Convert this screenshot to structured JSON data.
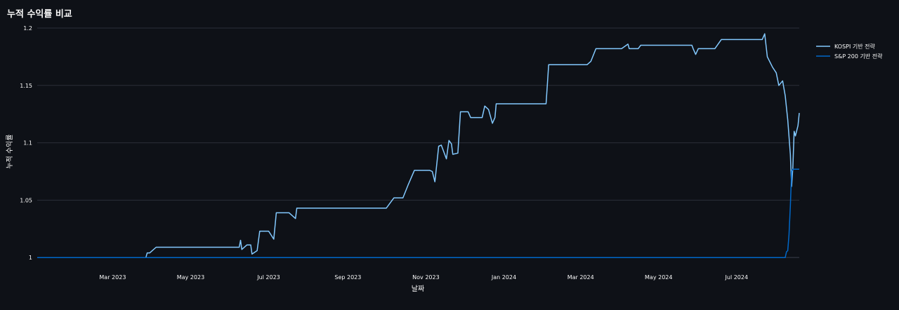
{
  "page": {
    "title": "누적 수익률 비교"
  },
  "chart_data": {
    "type": "line",
    "title": "누적 수익률 비교",
    "xlabel": "날짜",
    "ylabel": "누적 수익률",
    "grid": true,
    "legend_position": "right",
    "xlim": [
      "2023-01-01",
      "2024-08-19"
    ],
    "ylim": [
      0.994,
      1.2
    ],
    "x_ticks": [
      {
        "date": "2023-03-01",
        "label": "Mar 2023"
      },
      {
        "date": "2023-05-01",
        "label": "May 2023"
      },
      {
        "date": "2023-07-01",
        "label": "Jul 2023"
      },
      {
        "date": "2023-09-01",
        "label": "Sep 2023"
      },
      {
        "date": "2023-11-01",
        "label": "Nov 2023"
      },
      {
        "date": "2024-01-01",
        "label": "Jan 2024"
      },
      {
        "date": "2024-03-01",
        "label": "Mar 2024"
      },
      {
        "date": "2024-05-01",
        "label": "May 2024"
      },
      {
        "date": "2024-07-01",
        "label": "Jul 2024"
      }
    ],
    "y_ticks": [
      {
        "value": 1,
        "label": "1"
      },
      {
        "value": 1.05,
        "label": "1.05"
      },
      {
        "value": 1.1,
        "label": "1.1"
      },
      {
        "value": 1.15,
        "label": "1.15"
      },
      {
        "value": 1.2,
        "label": "1.2"
      }
    ],
    "series": [
      {
        "name": "KOSPI 기반 전략",
        "color": "#83c9ff",
        "points": [
          [
            "2023-01-01",
            1.0
          ],
          [
            "2023-03-27",
            1.0
          ],
          [
            "2023-03-28",
            1.004
          ],
          [
            "2023-03-30",
            1.004
          ],
          [
            "2023-04-04",
            1.009
          ],
          [
            "2023-06-08",
            1.009
          ],
          [
            "2023-06-09",
            1.015
          ],
          [
            "2023-06-10",
            1.007
          ],
          [
            "2023-06-14",
            1.011
          ],
          [
            "2023-06-17",
            1.011
          ],
          [
            "2023-06-18",
            1.003
          ],
          [
            "2023-06-22",
            1.006
          ],
          [
            "2023-06-24",
            1.023
          ],
          [
            "2023-07-01",
            1.023
          ],
          [
            "2023-07-05",
            1.016
          ],
          [
            "2023-07-07",
            1.039
          ],
          [
            "2023-07-17",
            1.039
          ],
          [
            "2023-07-22",
            1.034
          ],
          [
            "2023-07-23",
            1.043
          ],
          [
            "2023-10-01",
            1.043
          ],
          [
            "2023-10-07",
            1.052
          ],
          [
            "2023-10-14",
            1.052
          ],
          [
            "2023-10-18",
            1.063
          ],
          [
            "2023-10-23",
            1.076
          ],
          [
            "2023-11-04",
            1.076
          ],
          [
            "2023-11-06",
            1.075
          ],
          [
            "2023-11-08",
            1.066
          ],
          [
            "2023-11-11",
            1.097
          ],
          [
            "2023-11-13",
            1.098
          ],
          [
            "2023-11-17",
            1.086
          ],
          [
            "2023-11-19",
            1.102
          ],
          [
            "2023-11-21",
            1.099
          ],
          [
            "2023-11-22",
            1.09
          ],
          [
            "2023-11-26",
            1.091
          ],
          [
            "2023-11-28",
            1.127
          ],
          [
            "2023-12-04",
            1.127
          ],
          [
            "2023-12-06",
            1.122
          ],
          [
            "2023-12-15",
            1.122
          ],
          [
            "2023-12-17",
            1.132
          ],
          [
            "2023-12-20",
            1.129
          ],
          [
            "2023-12-23",
            1.117
          ],
          [
            "2023-12-25",
            1.122
          ],
          [
            "2023-12-26",
            1.134
          ],
          [
            "2024-02-03",
            1.134
          ],
          [
            "2024-02-05",
            1.168
          ],
          [
            "2024-03-06",
            1.168
          ],
          [
            "2024-03-09",
            1.171
          ],
          [
            "2024-03-13",
            1.182
          ],
          [
            "2024-04-02",
            1.182
          ],
          [
            "2024-04-07",
            1.186
          ],
          [
            "2024-04-08",
            1.182
          ],
          [
            "2024-04-15",
            1.182
          ],
          [
            "2024-04-17",
            1.185
          ],
          [
            "2024-05-27",
            1.185
          ],
          [
            "2024-05-28",
            1.182
          ],
          [
            "2024-05-30",
            1.177
          ],
          [
            "2024-06-01",
            1.182
          ],
          [
            "2024-06-14",
            1.182
          ],
          [
            "2024-06-19",
            1.19
          ],
          [
            "2024-07-21",
            1.19
          ],
          [
            "2024-07-23",
            1.195
          ],
          [
            "2024-07-25",
            1.175
          ],
          [
            "2024-07-29",
            1.166
          ],
          [
            "2024-08-01",
            1.161
          ],
          [
            "2024-08-03",
            1.15
          ],
          [
            "2024-08-06",
            1.154
          ],
          [
            "2024-08-08",
            1.141
          ],
          [
            "2024-08-10",
            1.12
          ],
          [
            "2024-08-12",
            1.09
          ],
          [
            "2024-08-13",
            1.062
          ],
          [
            "2024-08-14",
            1.079
          ],
          [
            "2024-08-15",
            1.11
          ],
          [
            "2024-08-16",
            1.106
          ],
          [
            "2024-08-18",
            1.115
          ],
          [
            "2024-08-19",
            1.126
          ]
        ]
      },
      {
        "name": "S&P 200 기반 전략",
        "color": "#0068c9",
        "points": [
          [
            "2023-01-01",
            1.0
          ],
          [
            "2024-08-08",
            1.0
          ],
          [
            "2024-08-09",
            1.005
          ],
          [
            "2024-08-10",
            1.006
          ],
          [
            "2024-08-11",
            1.02
          ],
          [
            "2024-08-12",
            1.045
          ],
          [
            "2024-08-13",
            1.075
          ],
          [
            "2024-08-14",
            1.077
          ],
          [
            "2024-08-19",
            1.077
          ]
        ]
      }
    ]
  }
}
